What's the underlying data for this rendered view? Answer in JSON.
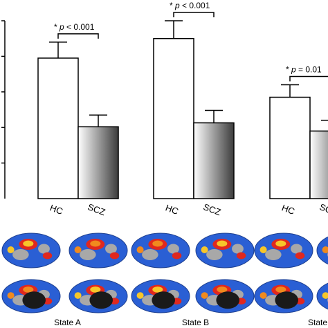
{
  "chart_data": {
    "type": "bar",
    "title": "",
    "xlabel": "",
    "ylabel": "",
    "ylim": [
      0,
      5
    ],
    "grid": false,
    "legend": "none",
    "groups": [
      {
        "label": "State A",
        "bars": [
          {
            "category": "HC",
            "value": 3.95,
            "error": 0.45,
            "fill": "white"
          },
          {
            "category": "SCZ",
            "value": 2.02,
            "error": 0.33,
            "fill": "gradient"
          }
        ],
        "annotation": "* p < 0.001"
      },
      {
        "label": "State B",
        "bars": [
          {
            "category": "HC",
            "value": 4.5,
            "error": 0.5,
            "fill": "white"
          },
          {
            "category": "SCZ",
            "value": 2.13,
            "error": 0.35,
            "fill": "gradient"
          }
        ],
        "annotation": "* p < 0.001"
      },
      {
        "label": "State",
        "bars": [
          {
            "category": "HC",
            "value": 2.85,
            "error": 0.35,
            "fill": "white"
          },
          {
            "category": "SCZ",
            "value": 1.9,
            "error": 0.3,
            "fill": "gradient"
          }
        ],
        "annotation": "* p = 0.01"
      }
    ]
  },
  "colors": {
    "axis": "#000000",
    "bar_outline": "#000000",
    "bar_white": "#ffffff",
    "gradient_light": "#ffffff",
    "gradient_dark": "#3c3c3c",
    "brain_blue": "#2a5fd4",
    "brain_gray": "#a8a8a8",
    "brain_red": "#e0281e",
    "brain_yellow": "#f7c62a",
    "brain_orange": "#f08a1e"
  }
}
